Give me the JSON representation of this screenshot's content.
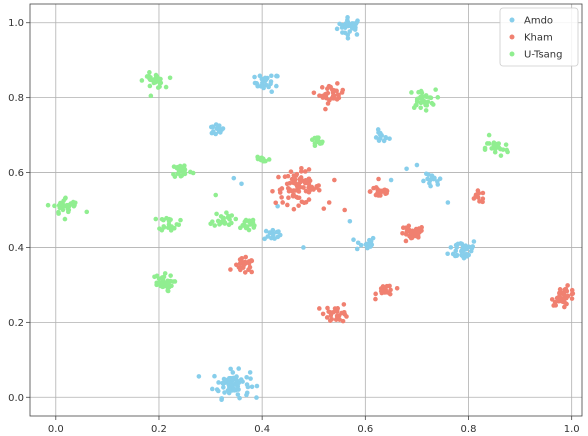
{
  "chart_data": {
    "type": "scatter",
    "title": "",
    "xlabel": "",
    "ylabel": "",
    "xlim": [
      -0.05,
      1.02
    ],
    "ylim": [
      -0.05,
      1.05
    ],
    "xticks": [
      "0.0",
      "0.2",
      "0.4",
      "0.6",
      "0.8",
      "1.0"
    ],
    "yticks": [
      "0.0",
      "0.2",
      "0.4",
      "0.6",
      "0.8",
      "1.0"
    ],
    "grid": true,
    "legend_position": "top-right",
    "series": [
      {
        "name": "Amdo",
        "color": "#87CEEB",
        "clusters": [
          {
            "x": 0.57,
            "y": 0.99,
            "spread": 0.012,
            "n": 30
          },
          {
            "x": 0.41,
            "y": 0.84,
            "spread": 0.012,
            "n": 26
          },
          {
            "x": 0.31,
            "y": 0.715,
            "spread": 0.008,
            "n": 16
          },
          {
            "x": 0.63,
            "y": 0.695,
            "spread": 0.008,
            "n": 14
          },
          {
            "x": 0.73,
            "y": 0.575,
            "spread": 0.01,
            "n": 14
          },
          {
            "x": 0.42,
            "y": 0.435,
            "spread": 0.008,
            "n": 14
          },
          {
            "x": 0.6,
            "y": 0.41,
            "spread": 0.01,
            "n": 18
          },
          {
            "x": 0.79,
            "y": 0.395,
            "spread": 0.014,
            "n": 36
          },
          {
            "x": 0.34,
            "y": 0.035,
            "spread": 0.018,
            "n": 70
          }
        ],
        "points": [
          [
            0.345,
            0.585
          ],
          [
            0.43,
            0.51
          ],
          [
            0.36,
            0.57
          ],
          [
            0.48,
            0.4
          ],
          [
            0.57,
            0.47
          ],
          [
            0.68,
            0.61
          ],
          [
            0.76,
            0.52
          ],
          [
            0.65,
            0.58
          ],
          [
            0.7,
            0.62
          ]
        ]
      },
      {
        "name": "Kham",
        "color": "#F08070",
        "clusters": [
          {
            "x": 0.535,
            "y": 0.81,
            "spread": 0.012,
            "n": 32
          },
          {
            "x": 0.47,
            "y": 0.56,
            "spread": 0.022,
            "n": 75
          },
          {
            "x": 0.63,
            "y": 0.55,
            "spread": 0.01,
            "n": 24
          },
          {
            "x": 0.82,
            "y": 0.535,
            "spread": 0.008,
            "n": 12
          },
          {
            "x": 0.69,
            "y": 0.435,
            "spread": 0.012,
            "n": 32
          },
          {
            "x": 0.365,
            "y": 0.35,
            "spread": 0.01,
            "n": 24
          },
          {
            "x": 0.64,
            "y": 0.285,
            "spread": 0.009,
            "n": 18
          },
          {
            "x": 0.545,
            "y": 0.225,
            "spread": 0.012,
            "n": 28
          },
          {
            "x": 0.985,
            "y": 0.27,
            "spread": 0.012,
            "n": 36
          }
        ],
        "points": [
          [
            0.54,
            0.58
          ],
          [
            0.53,
            0.52
          ],
          [
            0.56,
            0.5
          ],
          [
            0.42,
            0.55
          ]
        ]
      },
      {
        "name": "U-Tsang",
        "color": "#90EE90",
        "clusters": [
          {
            "x": 0.19,
            "y": 0.845,
            "spread": 0.01,
            "n": 26
          },
          {
            "x": 0.71,
            "y": 0.795,
            "spread": 0.013,
            "n": 32
          },
          {
            "x": 0.505,
            "y": 0.68,
            "spread": 0.008,
            "n": 14
          },
          {
            "x": 0.855,
            "y": 0.665,
            "spread": 0.011,
            "n": 24
          },
          {
            "x": 0.4,
            "y": 0.635,
            "spread": 0.008,
            "n": 12
          },
          {
            "x": 0.245,
            "y": 0.605,
            "spread": 0.01,
            "n": 28
          },
          {
            "x": 0.02,
            "y": 0.51,
            "spread": 0.012,
            "n": 32
          },
          {
            "x": 0.325,
            "y": 0.475,
            "spread": 0.01,
            "n": 24
          },
          {
            "x": 0.22,
            "y": 0.465,
            "spread": 0.01,
            "n": 22
          },
          {
            "x": 0.37,
            "y": 0.46,
            "spread": 0.012,
            "n": 18
          },
          {
            "x": 0.205,
            "y": 0.305,
            "spread": 0.011,
            "n": 32
          }
        ],
        "points": [
          [
            0.84,
            0.7
          ],
          [
            0.31,
            0.54
          ],
          [
            0.06,
            0.495
          ]
        ]
      }
    ]
  }
}
